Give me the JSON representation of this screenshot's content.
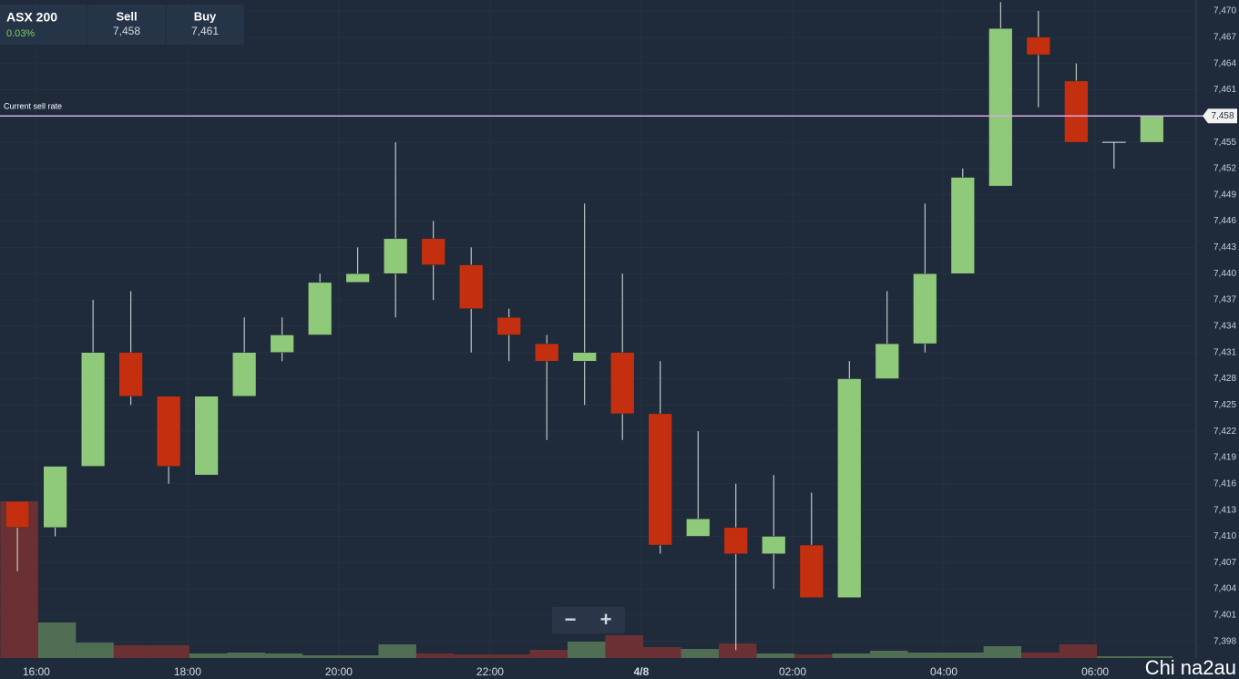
{
  "header": {
    "instrument": "ASX 200",
    "change": "0.03%",
    "sell_label": "Sell",
    "sell": "7,458",
    "buy_label": "Buy",
    "buy": "7,461"
  },
  "zoom": {
    "minus": "−",
    "plus": "+"
  },
  "watermark": "Chi na2au",
  "chart_data": {
    "type": "candlestick",
    "x": [
      15.75,
      16.25,
      16.75,
      17.25,
      17.75,
      18.25,
      18.75,
      19.25,
      19.75,
      20.25,
      20.75,
      21.25,
      21.75,
      22.25,
      22.75,
      23.25,
      23.75,
      24.25,
      24.75,
      25.25,
      25.75,
      26.25,
      26.75,
      27.25,
      27.75,
      28.25,
      28.75,
      29.25,
      29.75,
      30.25,
      30.75
    ],
    "open": [
      7414,
      7411,
      7418,
      7431,
      7426,
      7417,
      7426,
      7431,
      7433,
      7439,
      7440,
      7444,
      7441,
      7435,
      7432,
      7430,
      7431,
      7424,
      7410,
      7411,
      7408,
      7409,
      7403,
      7428,
      7432,
      7440,
      7450,
      7467,
      7462,
      7455,
      7455
    ],
    "high": [
      7414,
      7418,
      7437,
      7438,
      7426,
      7426,
      7435,
      7435,
      7440,
      7443,
      7455,
      7446,
      7443,
      7436,
      7433,
      7448,
      7440,
      7430,
      7422,
      7416,
      7417,
      7415,
      7430,
      7438,
      7448,
      7452,
      7471,
      7470,
      7464,
      7455,
      7458
    ],
    "low": [
      7406,
      7410,
      7418,
      7425,
      7416,
      7417,
      7426,
      7430,
      7433,
      7439,
      7435,
      7437,
      7431,
      7430,
      7421,
      7425,
      7421,
      7408,
      7410,
      7397,
      7404,
      7403,
      7403,
      7428,
      7431,
      7440,
      7450,
      7459,
      7455,
      7452,
      7455
    ],
    "close": [
      7411,
      7418,
      7431,
      7426,
      7418,
      7426,
      7431,
      7433,
      7439,
      7440,
      7444,
      7441,
      7436,
      7433,
      7430,
      7431,
      7424,
      7409,
      7412,
      7408,
      7410,
      7403,
      7428,
      7432,
      7440,
      7451,
      7468,
      7465,
      7455,
      7455,
      7458
    ],
    "volume": [
      172,
      39,
      17,
      14,
      14,
      5,
      6,
      5,
      3,
      3,
      15,
      5,
      4,
      4,
      9,
      18,
      25,
      12,
      10,
      16,
      5,
      4,
      5,
      8,
      6,
      6,
      13,
      6,
      15,
      2,
      2
    ],
    "up_color": "#8fc97a",
    "down_color": "#c4300f",
    "flat_color": "#e6e6e6",
    "up_volume_color": "#4f6e54",
    "down_volume_color": "#6b3033",
    "xlim": [
      15.52,
      31.3
    ],
    "xticks": [
      {
        "value": 16,
        "label": "16:00"
      },
      {
        "value": 18,
        "label": "18:00"
      },
      {
        "value": 20,
        "label": "20:00"
      },
      {
        "value": 22,
        "label": "22:00"
      },
      {
        "value": 24,
        "label": "4/8"
      },
      {
        "value": 26,
        "label": "02:00"
      },
      {
        "value": 28,
        "label": "04:00"
      },
      {
        "value": 30,
        "label": "06:00"
      }
    ],
    "ylim": [
      7396.1,
      7471.25
    ],
    "yticks": [
      {
        "value": 7398,
        "label": "7,398"
      },
      {
        "value": 7401,
        "label": "7,401"
      },
      {
        "value": 7404,
        "label": "7,404"
      },
      {
        "value": 7407,
        "label": "7,407"
      },
      {
        "value": 7410,
        "label": "7,410"
      },
      {
        "value": 7413,
        "label": "7,413"
      },
      {
        "value": 7416,
        "label": "7,416"
      },
      {
        "value": 7419,
        "label": "7,419"
      },
      {
        "value": 7422,
        "label": "7,422"
      },
      {
        "value": 7425,
        "label": "7,425"
      },
      {
        "value": 7428,
        "label": "7,428"
      },
      {
        "value": 7431,
        "label": "7,431"
      },
      {
        "value": 7434,
        "label": "7,434"
      },
      {
        "value": 7437,
        "label": "7,437"
      },
      {
        "value": 7440,
        "label": "7,440"
      },
      {
        "value": 7443,
        "label": "7,443"
      },
      {
        "value": 7446,
        "label": "7,446"
      },
      {
        "value": 7449,
        "label": "7,449"
      },
      {
        "value": 7452,
        "label": "7,452"
      },
      {
        "value": 7455,
        "label": "7,455"
      },
      {
        "value": 7458,
        "label": "7,458"
      },
      {
        "value": 7461,
        "label": "7,461"
      },
      {
        "value": 7464,
        "label": "7,464"
      },
      {
        "value": 7467,
        "label": "7,467"
      },
      {
        "value": 7470,
        "label": "7,470"
      }
    ],
    "grid": true,
    "reference_line": {
      "label": "Current sell rate",
      "value": 7458,
      "value_label": "7,458",
      "color": "#d7a8e6"
    }
  }
}
